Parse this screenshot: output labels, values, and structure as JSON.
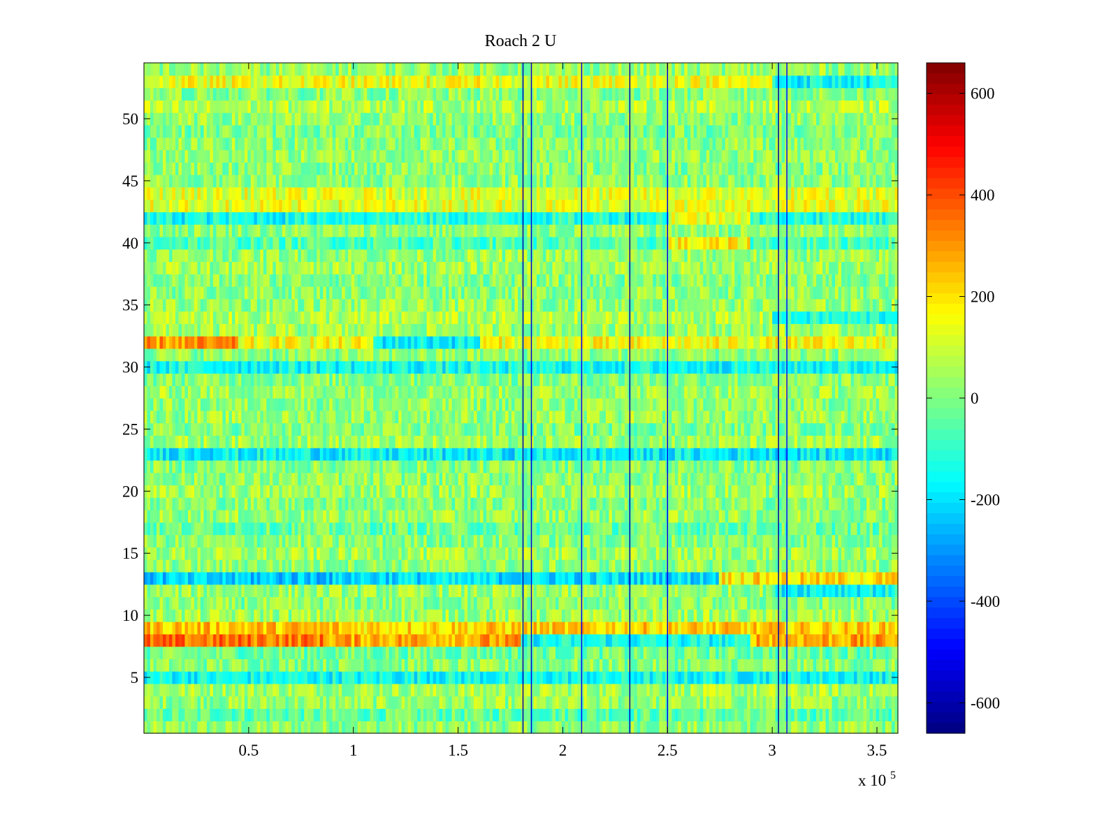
{
  "chart_data": {
    "type": "heatmap",
    "title": "Roach 2 U",
    "xlabel": "",
    "ylabel": "",
    "x_range": [
      0,
      360000
    ],
    "y_range": [
      0.5,
      54.5
    ],
    "rows": 54,
    "x_ticks": [
      0.5,
      1,
      1.5,
      2,
      2.5,
      3,
      3.5
    ],
    "x_tick_labels": [
      "0.5",
      "1",
      "1.5",
      "2",
      "2.5",
      "3",
      "3.5"
    ],
    "x_multiplier": {
      "base": "x 10",
      "exponent": "5"
    },
    "y_ticks": [
      5,
      10,
      15,
      20,
      25,
      30,
      35,
      40,
      45,
      50
    ],
    "y_tick_labels": [
      "5",
      "10",
      "15",
      "20",
      "25",
      "30",
      "35",
      "40",
      "45",
      "50"
    ],
    "colormap": "jet",
    "clim": [
      -660,
      660
    ],
    "colorbar_ticks": [
      600,
      400,
      200,
      0,
      -200,
      -400,
      -600
    ],
    "colorbar_tick_labels": [
      "600",
      "400",
      "200",
      "0",
      "-200",
      "-400",
      "-600"
    ],
    "row_base_values": [
      [
        1,
        20
      ],
      [
        2,
        -40
      ],
      [
        3,
        30
      ],
      [
        4,
        50
      ],
      [
        5,
        -150
      ],
      [
        6,
        10
      ],
      [
        7,
        -20
      ],
      [
        8,
        280
      ],
      [
        9,
        220
      ],
      [
        10,
        40
      ],
      [
        11,
        10
      ],
      [
        12,
        30
      ],
      [
        13,
        -200
      ],
      [
        14,
        20
      ],
      [
        15,
        40
      ],
      [
        16,
        10
      ],
      [
        17,
        -30
      ],
      [
        18,
        30
      ],
      [
        19,
        10
      ],
      [
        20,
        40
      ],
      [
        21,
        20
      ],
      [
        22,
        10
      ],
      [
        23,
        -180
      ],
      [
        24,
        40
      ],
      [
        25,
        0
      ],
      [
        26,
        30
      ],
      [
        27,
        20
      ],
      [
        28,
        40
      ],
      [
        29,
        10
      ],
      [
        30,
        -150
      ],
      [
        31,
        20
      ],
      [
        32,
        150
      ],
      [
        33,
        40
      ],
      [
        34,
        60
      ],
      [
        35,
        30
      ],
      [
        36,
        20
      ],
      [
        37,
        10
      ],
      [
        38,
        40
      ],
      [
        39,
        30
      ],
      [
        40,
        -60
      ],
      [
        41,
        20
      ],
      [
        42,
        -120
      ],
      [
        43,
        130
      ],
      [
        44,
        120
      ],
      [
        45,
        20
      ],
      [
        46,
        10
      ],
      [
        47,
        30
      ],
      [
        48,
        20
      ],
      [
        49,
        0
      ],
      [
        50,
        20
      ],
      [
        51,
        60
      ],
      [
        52,
        10
      ],
      [
        53,
        140
      ],
      [
        54,
        30
      ]
    ],
    "row_segments": [
      {
        "row": 42,
        "x_start": 0,
        "x_end": 75000,
        "value": -150
      },
      {
        "row": 42,
        "x_start": 250000,
        "x_end": 290000,
        "value": 150
      },
      {
        "row": 40,
        "x_start": 250000,
        "x_end": 290000,
        "value": 170
      },
      {
        "row": 32,
        "x_start": 110000,
        "x_end": 160000,
        "value": -170
      },
      {
        "row": 32,
        "x_start": 0,
        "x_end": 45000,
        "value": 290
      },
      {
        "row": 13,
        "x_start": 0,
        "x_end": 95000,
        "value": -230
      },
      {
        "row": 13,
        "x_start": 275000,
        "x_end": 360000,
        "value": 200
      },
      {
        "row": 12,
        "x_start": 300000,
        "x_end": 360000,
        "value": -150
      },
      {
        "row": 9,
        "x_start": 0,
        "x_end": 95000,
        "value": 240
      },
      {
        "row": 8,
        "x_start": 0,
        "x_end": 85000,
        "value": 340
      },
      {
        "row": 8,
        "x_start": 180000,
        "x_end": 290000,
        "value": -150
      },
      {
        "row": 53,
        "x_start": 300000,
        "x_end": 360000,
        "value": -160
      },
      {
        "row": 23,
        "x_start": 0,
        "x_end": 95000,
        "value": -170
      },
      {
        "row": 5,
        "x_start": 0,
        "x_end": 95000,
        "value": -150
      },
      {
        "row": 34,
        "x_start": 300000,
        "x_end": 360000,
        "value": -130
      }
    ],
    "vertical_lines": [
      {
        "x": 181000,
        "value": -600
      },
      {
        "x": 185000,
        "value": -550
      },
      {
        "x": 209000,
        "value": -500
      },
      {
        "x": 232000,
        "value": -600
      },
      {
        "x": 250000,
        "value": -520
      },
      {
        "x": 303000,
        "value": -620
      },
      {
        "x": 307000,
        "value": -480
      }
    ]
  }
}
